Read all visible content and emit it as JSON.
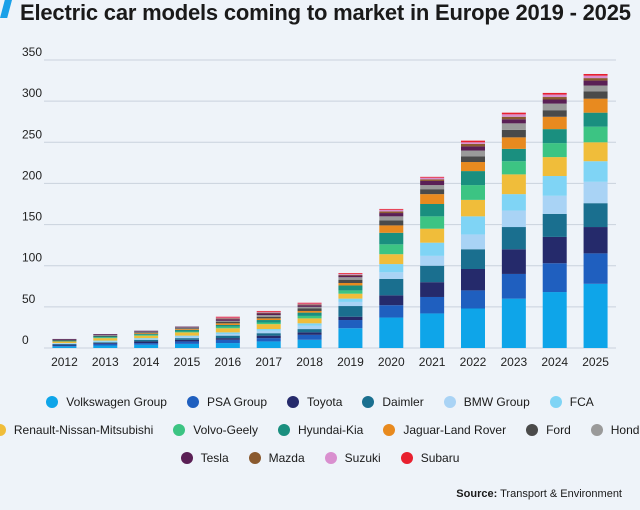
{
  "title": "Electric car models coming to market in Europe 2019 - 2025",
  "source_label": "Source:",
  "source_text": "Transport & Environment",
  "chart_data": {
    "type": "bar",
    "stacked": true,
    "title": "Electric car models coming to market in Europe 2019 - 2025",
    "xlabel": "",
    "ylabel": "",
    "ylim": [
      0,
      350
    ],
    "yticks": [
      0,
      50,
      100,
      150,
      200,
      250,
      300,
      350
    ],
    "grid": true,
    "legend_position": "bottom",
    "categories": [
      "2012",
      "2013",
      "2014",
      "2015",
      "2016",
      "2017",
      "2018",
      "2019",
      "2020",
      "2021",
      "2022",
      "2023",
      "2024",
      "2025"
    ],
    "series": [
      {
        "name": "Volkswagen Group",
        "color": "#0ea5e9",
        "values": [
          2,
          3,
          4,
          5,
          6,
          8,
          10,
          24,
          37,
          42,
          48,
          60,
          68,
          78
        ]
      },
      {
        "name": "PSA Group",
        "color": "#1f5fbf",
        "values": [
          1,
          2,
          2,
          3,
          4,
          4,
          6,
          10,
          15,
          20,
          22,
          30,
          35,
          37
        ]
      },
      {
        "name": "Toyota",
        "color": "#252a6b",
        "values": [
          1,
          1,
          2,
          2,
          2,
          3,
          3,
          4,
          12,
          18,
          26,
          30,
          32,
          32
        ]
      },
      {
        "name": "Daimler",
        "color": "#1a6f8f",
        "values": [
          1,
          1,
          2,
          2,
          3,
          3,
          4,
          13,
          20,
          20,
          24,
          27,
          28,
          29
        ]
      },
      {
        "name": "BMW Group",
        "color": "#a9d3f5",
        "values": [
          1,
          1,
          1,
          2,
          2,
          3,
          4,
          5,
          8,
          12,
          18,
          20,
          22,
          26
        ]
      },
      {
        "name": "FCA",
        "color": "#7fd4f5",
        "values": [
          0,
          1,
          1,
          1,
          2,
          2,
          3,
          4,
          10,
          16,
          22,
          20,
          24,
          25
        ]
      },
      {
        "name": "Renault-Nissan-Mitsubishi",
        "color": "#f0bd3a",
        "values": [
          2,
          3,
          3,
          4,
          5,
          6,
          6,
          6,
          12,
          17,
          20,
          24,
          23,
          23
        ]
      },
      {
        "name": "Volvo-Geely",
        "color": "#3cc483",
        "values": [
          0,
          1,
          1,
          1,
          2,
          2,
          3,
          4,
          12,
          15,
          18,
          16,
          17,
          19
        ]
      },
      {
        "name": "Hyundai-Kia",
        "color": "#1a8f7f",
        "values": [
          1,
          1,
          1,
          2,
          2,
          3,
          4,
          6,
          14,
          15,
          17,
          15,
          17,
          17
        ]
      },
      {
        "name": "Jaguar-Land Rover",
        "color": "#e88a1f",
        "values": [
          0,
          0,
          1,
          1,
          2,
          2,
          2,
          3,
          9,
          12,
          11,
          14,
          15,
          17
        ]
      },
      {
        "name": "Ford",
        "color": "#4a4a4a",
        "values": [
          1,
          1,
          1,
          1,
          2,
          2,
          3,
          4,
          6,
          6,
          7,
          9,
          8,
          9
        ]
      },
      {
        "name": "Honda",
        "color": "#9a9a9a",
        "values": [
          0,
          1,
          1,
          1,
          1,
          2,
          2,
          3,
          5,
          5,
          7,
          8,
          8,
          7
        ]
      },
      {
        "name": "Tesla",
        "color": "#5a1f55",
        "values": [
          1,
          1,
          1,
          1,
          2,
          2,
          2,
          2,
          4,
          5,
          5,
          5,
          5,
          6
        ]
      },
      {
        "name": "Mazda",
        "color": "#8a5a2f",
        "values": [
          0,
          0,
          0,
          0,
          1,
          1,
          1,
          1,
          2,
          2,
          3,
          3,
          3,
          3
        ]
      },
      {
        "name": "Suzuki",
        "color": "#d98fcf",
        "values": [
          0,
          0,
          0,
          0,
          1,
          1,
          1,
          1,
          2,
          2,
          2,
          3,
          3,
          3
        ]
      },
      {
        "name": "Subaru",
        "color": "#e8202f",
        "values": [
          0,
          0,
          0,
          0,
          1,
          1,
          1,
          1,
          1,
          1,
          2,
          2,
          2,
          2
        ]
      }
    ]
  }
}
